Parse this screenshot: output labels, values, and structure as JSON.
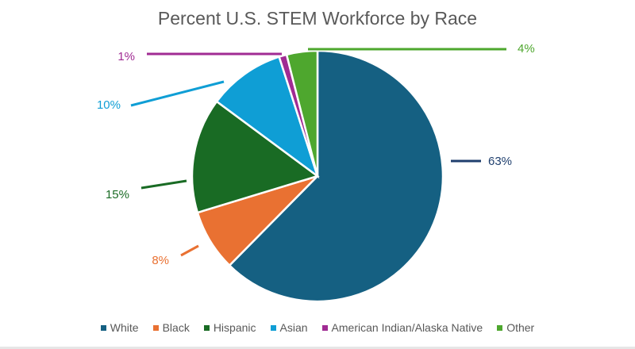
{
  "chart_data": {
    "type": "pie",
    "title": "Percent U.S. STEM Workforce by Race",
    "categories": [
      "White",
      "Black",
      "Hispanic",
      "Asian",
      "American Indian/Alaska Native",
      "Other"
    ],
    "values": [
      63,
      8,
      15,
      10,
      1,
      4
    ],
    "labels": [
      "63%",
      "8%",
      "15%",
      "10%",
      "1%",
      "4%"
    ],
    "colors": [
      "#156082",
      "#E97132",
      "#196B24",
      "#0F9ED5",
      "#A02B93",
      "#4EA72E"
    ],
    "label_colors": [
      "#1F3F6E",
      "#E97132",
      "#196B24",
      "#0F9ED5",
      "#A02B93",
      "#4EA72E"
    ],
    "legend_position": "bottom"
  }
}
